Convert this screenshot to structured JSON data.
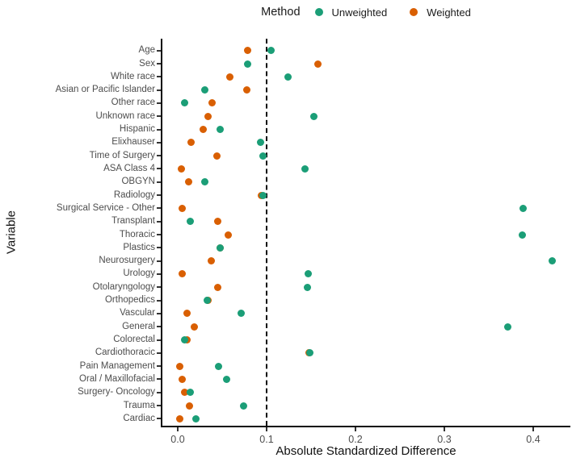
{
  "legend": {
    "title": "Method",
    "items": [
      {
        "label": "Unweighted",
        "color": "#1B9E77"
      },
      {
        "label": "Weighted",
        "color": "#D95F02"
      }
    ]
  },
  "chart_data": {
    "type": "scatter",
    "title": "",
    "xlabel": "Absolute Standardized Difference",
    "ylabel": "Variable",
    "xlim": [
      -0.018,
      0.442
    ],
    "x_ticks": [
      0.0,
      0.1,
      0.2,
      0.3,
      0.4
    ],
    "x_tick_labels": [
      "0.0",
      "0.1",
      "0.2",
      "0.3",
      "0.4"
    ],
    "reference_line_x": 0.1,
    "grid": false,
    "legend_position": "top",
    "categories": [
      "Age",
      "Sex",
      "White race",
      "Asian or Pacific Islander",
      "Other race",
      "Unknown race",
      "Hispanic",
      "Elixhauser",
      "Time of Surgery",
      "ASA Class 4",
      "OBGYN",
      "Radiology",
      "Surgical Service - Other",
      "Transplant",
      "Thoracic",
      "Plastics",
      "Neurosurgery",
      "Urology",
      "Otolaryngology",
      "Orthopedics",
      "Vascular",
      "General",
      "Colorectal",
      "Cardiothoracic",
      "Pain Management",
      "Oral / Maxillofacial",
      "Surgery- Oncology",
      "Trauma",
      "Cardiac"
    ],
    "series": [
      {
        "name": "Unweighted",
        "color": "#1B9E77",
        "values": [
          0.105,
          0.079,
          0.124,
          0.03,
          0.008,
          0.153,
          0.048,
          0.093,
          0.096,
          0.143,
          0.03,
          0.096,
          0.389,
          0.014,
          0.388,
          0.048,
          0.421,
          0.147,
          0.146,
          0.033,
          0.071,
          0.371,
          0.008,
          0.149,
          0.046,
          0.055,
          0.014,
          0.074,
          0.02
        ]
      },
      {
        "name": "Weighted",
        "color": "#D95F02",
        "values": [
          0.079,
          0.158,
          0.059,
          0.078,
          0.039,
          0.034,
          0.029,
          0.015,
          0.044,
          0.004,
          0.012,
          0.094,
          0.005,
          0.045,
          0.057,
          0.048,
          0.038,
          0.005,
          0.045,
          0.034,
          0.01,
          0.019,
          0.01,
          0.148,
          0.002,
          0.005,
          0.008,
          0.013,
          0.002
        ]
      }
    ]
  },
  "colors": {
    "unweighted": "#1B9E77",
    "weighted": "#D95F02",
    "axis_line": "#0a0a0a",
    "tick_text": "#4d4d4d",
    "title_text": "#111111",
    "background": "#ffffff"
  }
}
